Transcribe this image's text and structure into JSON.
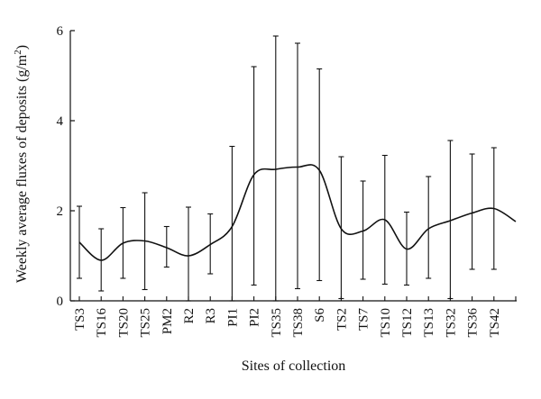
{
  "chart_data": {
    "type": "line",
    "title": "",
    "xlabel": "Sites of collection",
    "ylabel": "Weekly average fluxes of deposits (g/m",
    "ylabel_sup": "2",
    "ylabel_close": ")",
    "ylim": [
      0,
      6
    ],
    "yticks": [
      0,
      2,
      4,
      6
    ],
    "grid": false,
    "x_tick_labels": [
      "TS3",
      "TS16",
      "TS20",
      "TS25",
      "PM2",
      "R2",
      "R3",
      "PI1",
      "PI2",
      "TS35",
      "TS38",
      "S6",
      "TS2",
      "TS7",
      "TS10",
      "TS12",
      "TS13",
      "TS32",
      "TS36",
      "TS42"
    ],
    "n_positions": 21,
    "series": [
      {
        "values": [
          1.3,
          0.9,
          1.28,
          1.33,
          1.18,
          1.0,
          1.25,
          1.65,
          2.8,
          2.92,
          2.97,
          2.9,
          1.6,
          1.55,
          1.8,
          1.15,
          1.6,
          1.78,
          1.95,
          2.05,
          1.76
        ],
        "error_low": [
          0.5,
          0.22,
          0.5,
          0.25,
          0.75,
          0.0,
          0.6,
          0.0,
          0.35,
          0.0,
          0.27,
          0.45,
          0.05,
          0.48,
          0.37,
          0.35,
          0.5,
          0.05,
          0.7,
          0.7,
          null
        ],
        "error_high": [
          2.1,
          1.6,
          2.07,
          2.4,
          1.65,
          2.08,
          1.93,
          3.43,
          5.2,
          5.88,
          5.72,
          5.15,
          3.2,
          2.66,
          3.23,
          1.97,
          2.76,
          3.56,
          3.26,
          3.4,
          null
        ]
      }
    ]
  }
}
